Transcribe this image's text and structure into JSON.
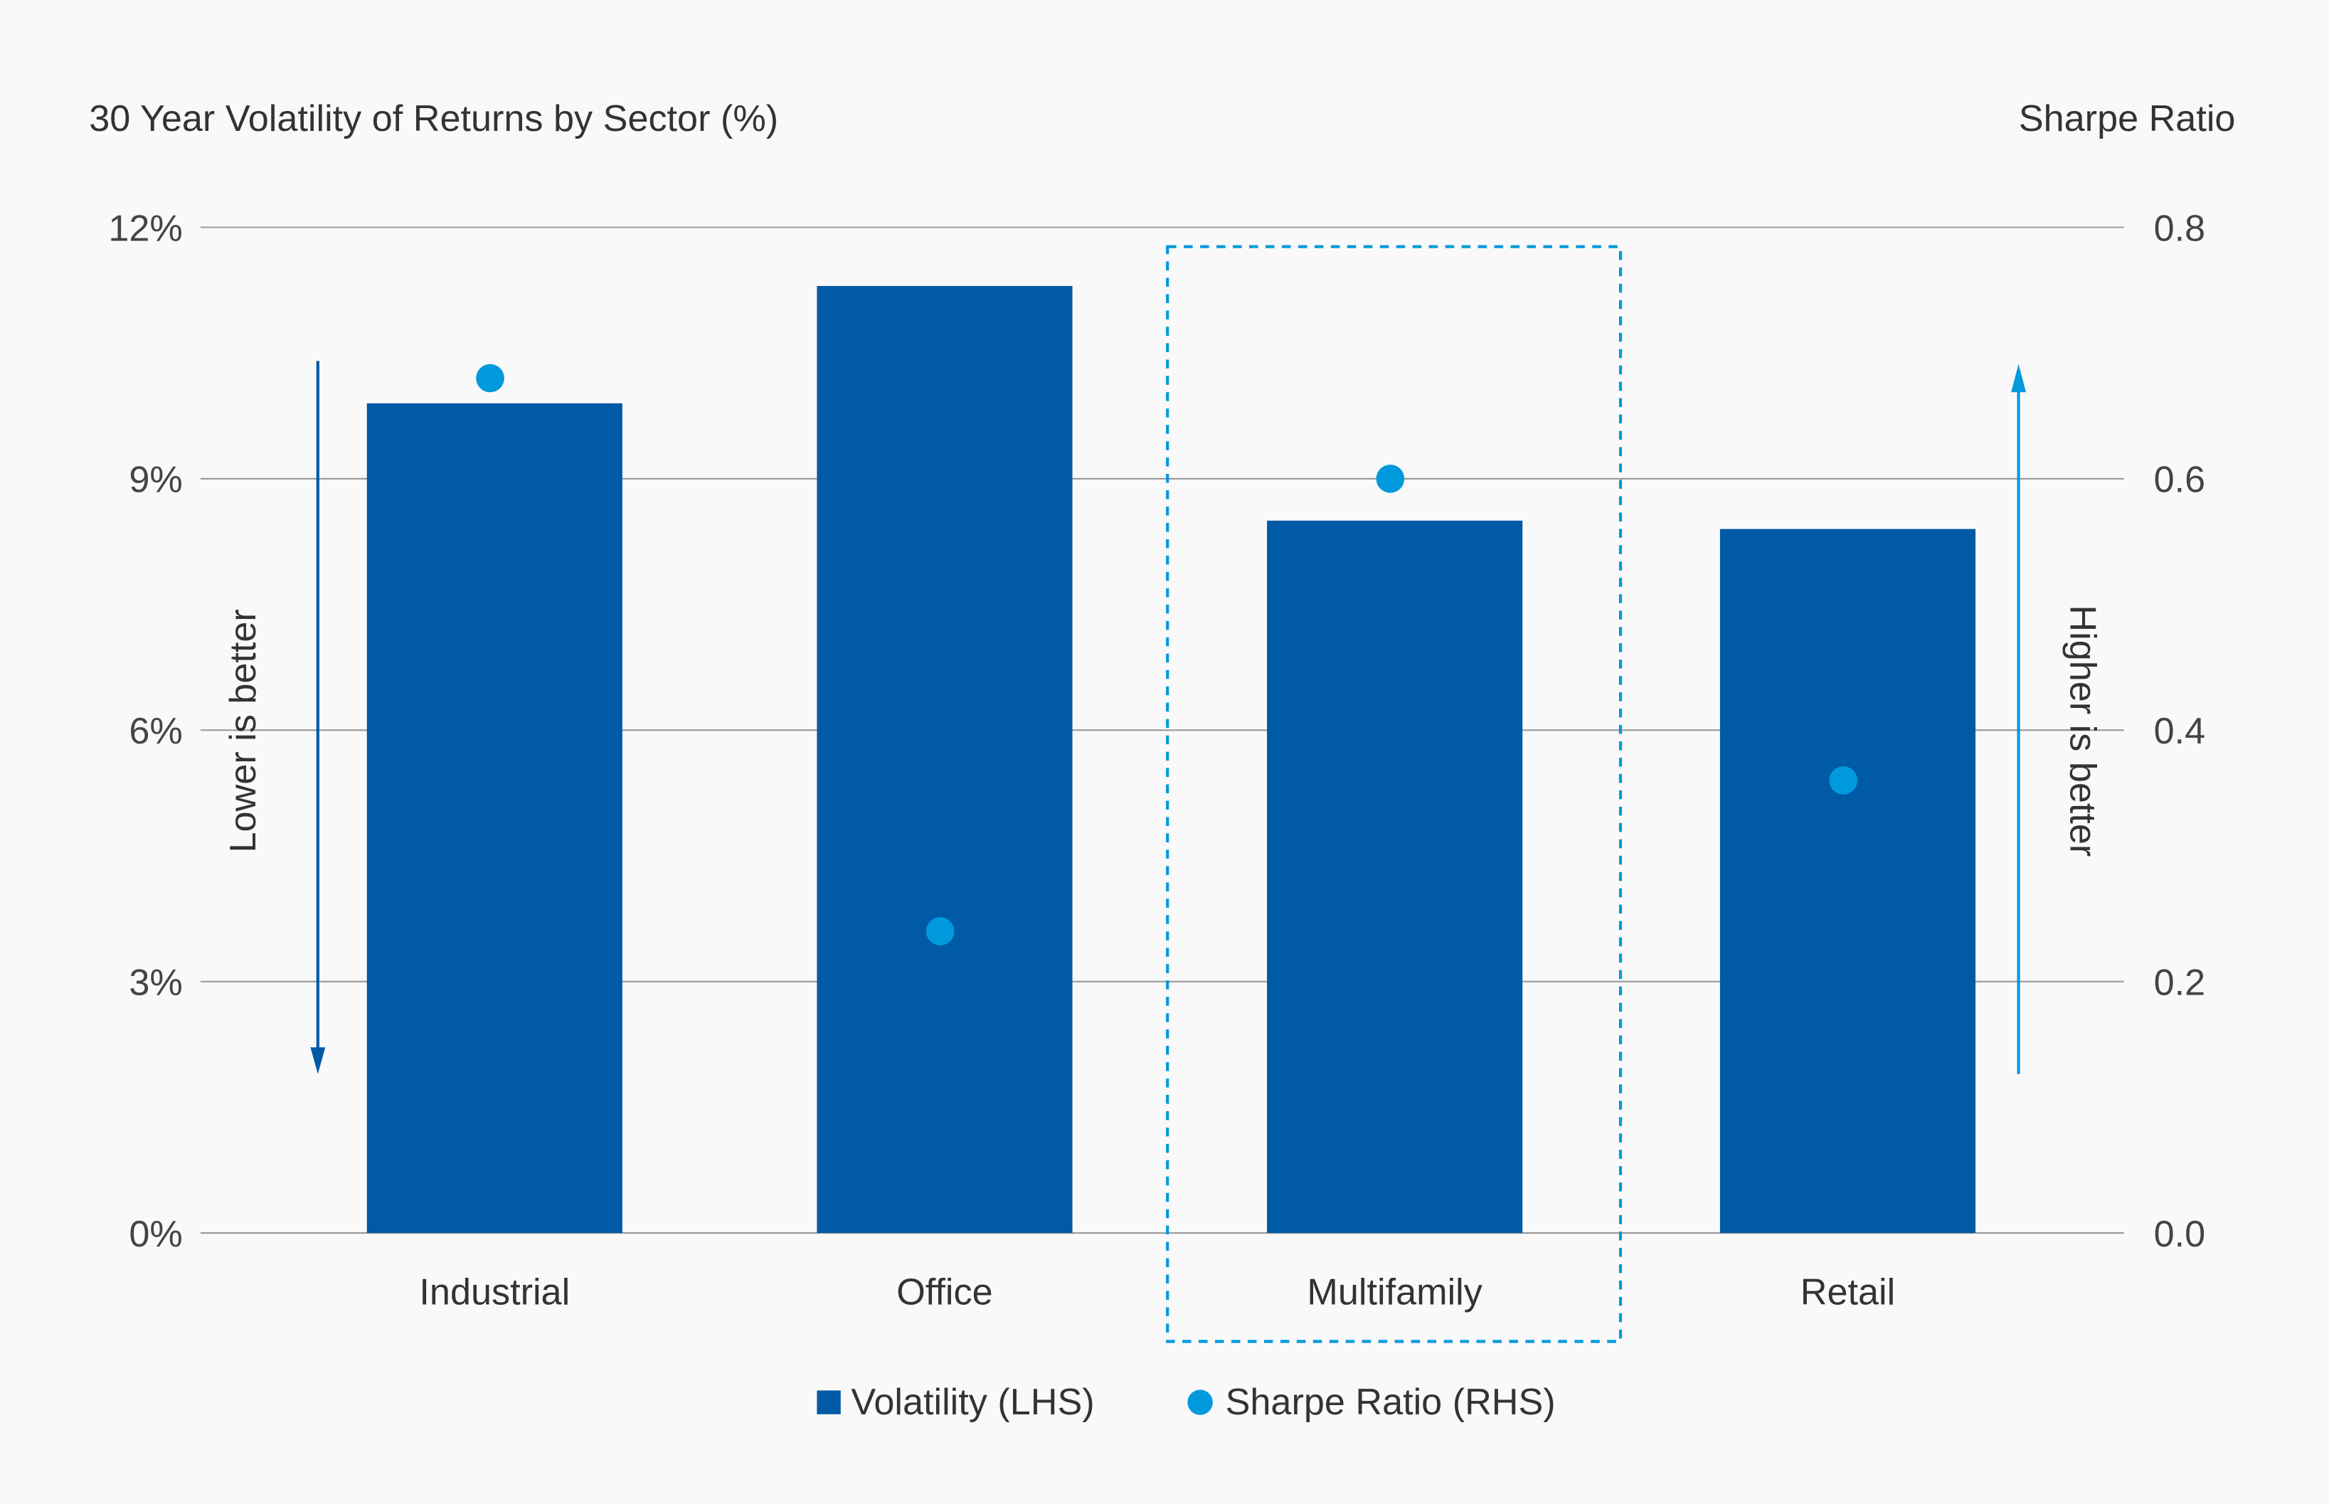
{
  "chart_data": {
    "type": "bar",
    "title": "30 Year Volatility of Returns by Sector (%)",
    "y2_title": "Sharpe Ratio",
    "categories": [
      "Industrial",
      "Office",
      "Multifamily",
      "Retail"
    ],
    "series": [
      {
        "name": "Volatility (LHS)",
        "type": "bar",
        "axis": "left",
        "values": [
          9.9,
          11.3,
          8.5,
          8.4
        ],
        "color": "#005aa5"
      },
      {
        "name": "Sharpe Ratio (RHS)",
        "type": "scatter",
        "axis": "right",
        "values": [
          0.68,
          0.24,
          0.6,
          0.36
        ],
        "color": "#0099dd"
      }
    ],
    "ylim": [
      0,
      12
    ],
    "y_ticks": [
      "0%",
      "3%",
      "6%",
      "9%",
      "12%"
    ],
    "y2lim": [
      0,
      0.8
    ],
    "y2_ticks": [
      "0.0",
      "0.2",
      "0.4",
      "0.6",
      "0.8"
    ],
    "grid": true,
    "legend_position": "bottom",
    "highlighted_category": "Multifamily",
    "annotations": {
      "left_arrow": "Lower is better",
      "right_arrow": "Higher is better"
    }
  }
}
